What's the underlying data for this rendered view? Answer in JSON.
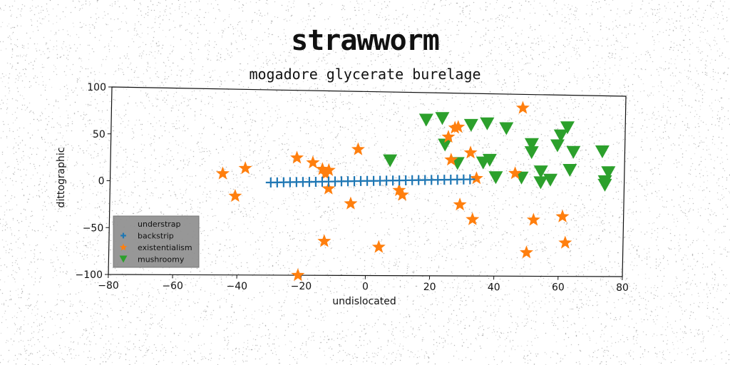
{
  "chart_data": {
    "type": "scatter",
    "title": "strawworm",
    "subtitle": "mogadore glycerate burelage",
    "xlabel": "undislocated",
    "ylabel": "dittographic",
    "xlim": [
      -80,
      80
    ],
    "ylim": [
      -100,
      100
    ],
    "xticks": [
      -80,
      -60,
      -40,
      -20,
      0,
      20,
      40,
      60,
      80
    ],
    "yticks": [
      -100,
      -50,
      0,
      50,
      100
    ],
    "grid": false,
    "legend_position": "lower-left",
    "colors": {
      "backstrip": "#1f77b4",
      "existentialism": "#ff7f0e",
      "mushroomy": "#2ca02c"
    },
    "series": [
      {
        "name": "understrap",
        "marker": "none",
        "x": [],
        "y": []
      },
      {
        "name": "backstrip",
        "marker": "plus",
        "x": [
          -30,
          -28,
          -26,
          -24,
          -22,
          -20,
          -18,
          -16,
          -14,
          -12,
          -10,
          -8,
          -6,
          -4,
          -2,
          0,
          2,
          4,
          6,
          8,
          10,
          12,
          14,
          16,
          18,
          20,
          22,
          24,
          26,
          28,
          30,
          32
        ],
        "y": [
          0,
          0.2,
          0.4,
          0.6,
          0.8,
          1.0,
          1.1,
          1.3,
          1.5,
          1.7,
          1.9,
          2.1,
          2.3,
          2.5,
          2.7,
          2.9,
          3.0,
          3.2,
          3.4,
          3.6,
          3.8,
          4.0,
          4.2,
          4.4,
          4.6,
          4.8,
          4.9,
          5.1,
          5.3,
          5.5,
          5.7,
          5.9
        ]
      },
      {
        "name": "existentialism",
        "marker": "star",
        "x": [
          -45,
          -41,
          -38,
          -22,
          -17,
          -14,
          -13,
          -12,
          -3,
          -12,
          -13,
          -5,
          4,
          10,
          11,
          25,
          26,
          28,
          27,
          32,
          34,
          29,
          33,
          46,
          48,
          52,
          61,
          50,
          62,
          -21
        ],
        "y": [
          9,
          -15,
          15,
          27,
          22,
          15,
          10,
          14,
          37,
          -6,
          -63,
          -22,
          -69,
          -7,
          -12,
          52,
          27,
          63,
          62,
          35,
          7,
          -22,
          -38,
          13,
          85,
          -38,
          -34,
          -74,
          -63,
          -100
        ]
      },
      {
        "name": "mushroomy",
        "marker": "triangle-down",
        "x": [
          7,
          18,
          23,
          24,
          28,
          32,
          37,
          43,
          38,
          36,
          40,
          48,
          51,
          51,
          54,
          54,
          57,
          59,
          60,
          62,
          63,
          64,
          73,
          75,
          74,
          74
        ],
        "y": [
          25,
          70,
          72,
          43,
          23,
          65,
          67,
          62,
          27,
          24,
          8,
          8,
          45,
          36,
          15,
          3,
          6,
          44,
          55,
          64,
          17,
          37,
          38,
          15,
          5,
          1
        ]
      }
    ]
  }
}
